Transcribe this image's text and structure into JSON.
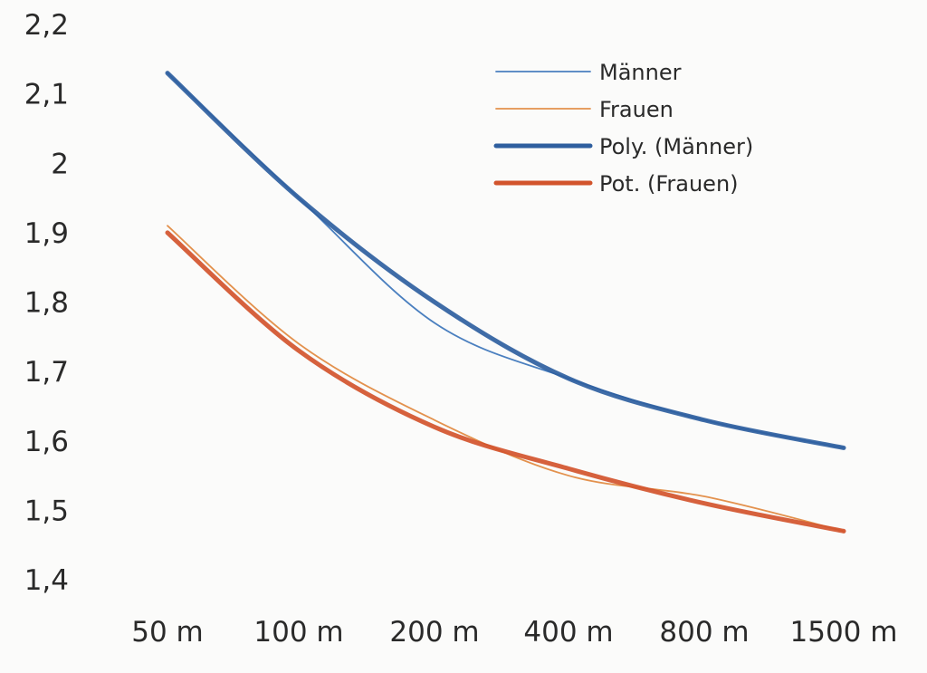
{
  "chart_data": {
    "type": "line",
    "title": "",
    "xlabel": "",
    "ylabel": "",
    "categories": [
      "50 m",
      "100 m",
      "200 m",
      "400 m",
      "800 m",
      "1500 m"
    ],
    "y_tick_labels": [
      "2,2",
      "2,1",
      "2",
      "1,9",
      "1,8",
      "1,7",
      "1,6",
      "1,5",
      "1,4"
    ],
    "ylim": [
      1.4,
      2.2
    ],
    "grid": false,
    "legend_position": "top-right",
    "series": [
      {
        "name": "Männer",
        "kind": "data",
        "color": "#4a7fbf",
        "values": [
          2.13,
          1.95,
          1.77,
          1.69,
          1.63,
          1.59
        ]
      },
      {
        "name": "Frauen",
        "kind": "data",
        "color": "#e3914d",
        "values": [
          1.91,
          1.74,
          1.63,
          1.55,
          1.52,
          1.47
        ]
      },
      {
        "name": "Poly. (Männer)",
        "kind": "trend",
        "color": "#2f5f9f",
        "values": [
          2.13,
          1.95,
          1.8,
          1.69,
          1.63,
          1.59
        ]
      },
      {
        "name": "Pot. (Frauen)",
        "kind": "trend",
        "color": "#d2542c",
        "values": [
          1.9,
          1.73,
          1.62,
          1.56,
          1.51,
          1.47
        ]
      }
    ]
  }
}
